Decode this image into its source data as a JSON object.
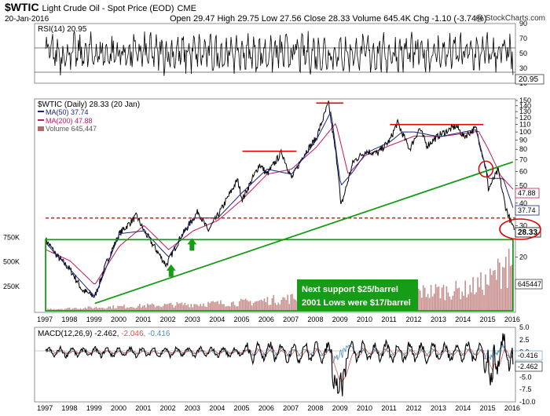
{
  "header": {
    "symbol": "$WTIC",
    "name": "Light Crude Oil - Spot Price (EOD)",
    "exchange": "CME",
    "date": "20-Jan-2016",
    "ohlc_line": "Open 29.47   High 29.75   Low 27.56   Close 28.33   Volume 645.4K   Chg -1.10 (-3.74%)",
    "watermark": "@ StockCharts.com"
  },
  "rsi_panel": {
    "label": "RSI(14) 20.95",
    "value_label": "20.95",
    "ticks": [
      "90",
      "70",
      "50",
      "30",
      "10"
    ]
  },
  "price_panel": {
    "legend": {
      "title": "$WTIC (Daily) 28.33 (20 Jan)",
      "ma50": "MA(50) 37.74",
      "ma200": "MA(200) 47.88",
      "volume": "Volume 645,447"
    },
    "price_ticks": [
      "150",
      "140",
      "130",
      "120",
      "110",
      "100",
      "90",
      "80",
      "70",
      "60",
      "50",
      "40",
      "30",
      "20"
    ],
    "value_labels": {
      "ma200": "47.88",
      "ma50": "37.74",
      "close": "28.33",
      "volume": "645447"
    },
    "volume_ticks": [
      "750K",
      "500K",
      "250K"
    ],
    "annotation_1": "Next support $25/barrel",
    "annotation_2": "2001 Lows were $17/barrel",
    "colors": {
      "price": "#000000",
      "ma50": "#1a237e",
      "ma200": "#c2185b",
      "volume": "#b56a6a",
      "trend": "#169c16",
      "resistance": "#e00000"
    }
  },
  "macd_panel": {
    "label_main": "MACD(12,26,9) -2.462,",
    "label_signal": "-2.046,",
    "label_hist": "-0.416",
    "ticks": [
      "5.0",
      "2.5",
      "0.0",
      "-2.5",
      "-5.0",
      "-7.5",
      "-10.0"
    ],
    "value_labels": {
      "hist": "-0.416",
      "macd": "-2.462"
    }
  },
  "x_axis": {
    "years": [
      "1997",
      "1998",
      "1999",
      "2000",
      "2001",
      "2002",
      "2003",
      "2004",
      "2005",
      "2006",
      "2007",
      "2008",
      "2009",
      "2010",
      "2011",
      "2012",
      "2013",
      "2014",
      "2015",
      "2016"
    ]
  },
  "chart_data": {
    "type": "line",
    "title": "$WTIC Light Crude Oil - Spot Price (EOD)",
    "x_range": [
      "1997",
      "2016"
    ],
    "price_axis": {
      "scale": "log",
      "ylim": [
        10,
        150
      ]
    },
    "series": [
      {
        "name": "$WTIC (Daily)",
        "x": [
          1997.0,
          1997.5,
          1998.0,
          1998.5,
          1999.0,
          1999.5,
          2000.0,
          2000.7,
          2001.0,
          2001.9,
          2002.5,
          2003.2,
          2003.6,
          2004.0,
          2004.8,
          2005.0,
          2005.7,
          2006.0,
          2006.6,
          2007.0,
          2007.5,
          2008.0,
          2008.5,
          2008.9,
          2009.0,
          2009.5,
          2010.0,
          2010.5,
          2011.0,
          2011.3,
          2011.8,
          2012.2,
          2012.5,
          2013.0,
          2013.7,
          2014.0,
          2014.5,
          2014.9,
          2015.0,
          2015.4,
          2015.7,
          2016.0,
          2016.05
        ],
        "y": [
          25,
          20,
          17,
          13,
          12,
          19,
          27,
          34,
          28,
          18,
          26,
          36,
          28,
          34,
          54,
          42,
          66,
          58,
          77,
          55,
          75,
          92,
          145,
          60,
          38,
          68,
          78,
          76,
          90,
          113,
          80,
          105,
          84,
          96,
          108,
          94,
          105,
          62,
          48,
          61,
          38,
          29,
          28.33
        ]
      },
      {
        "name": "MA(50)",
        "x": [
          1997.0,
          1998.0,
          1999.0,
          2000.0,
          2001.0,
          2002.0,
          2003.0,
          2004.0,
          2005.0,
          2006.0,
          2007.0,
          2008.0,
          2008.6,
          2009.0,
          2009.5,
          2010.0,
          2011.0,
          2011.5,
          2012.0,
          2013.0,
          2014.0,
          2014.5,
          2015.0,
          2015.6,
          2016.0
        ],
        "y": [
          24,
          17,
          12,
          27,
          28,
          20,
          33,
          33,
          46,
          62,
          58,
          90,
          130,
          50,
          60,
          76,
          88,
          100,
          100,
          94,
          100,
          103,
          55,
          55,
          37.74
        ]
      },
      {
        "name": "MA(200)",
        "x": [
          1997.0,
          1998.0,
          1999.0,
          2000.0,
          2001.0,
          2002.0,
          2003.0,
          2004.0,
          2005.0,
          2006.0,
          2007.0,
          2008.0,
          2008.8,
          2009.3,
          2010.0,
          2011.0,
          2012.0,
          2013.0,
          2014.0,
          2014.6,
          2015.0,
          2015.5,
          2016.0
        ],
        "y": [
          22,
          19,
          14,
          23,
          30,
          22,
          28,
          32,
          42,
          58,
          62,
          82,
          112,
          58,
          74,
          84,
          95,
          94,
          98,
          101,
          80,
          57,
          47.88
        ]
      }
    ],
    "volume": {
      "x": [
        1997,
        1999,
        2001,
        2003,
        2005,
        2007,
        2009,
        2010,
        2011,
        2012,
        2013,
        2014,
        2015,
        2016
      ],
      "values": [
        20000,
        40000,
        60000,
        80000,
        100000,
        150000,
        250000,
        200000,
        220000,
        220000,
        240000,
        250000,
        350000,
        645447
      ],
      "ylim": [
        0,
        800000
      ]
    },
    "rsi": {
      "name": "RSI(14)",
      "last": 20.95,
      "ylim": [
        10,
        90
      ],
      "levels": [
        30,
        70
      ]
    },
    "macd": {
      "name": "MACD(12,26,9)",
      "macd": -2.462,
      "signal": -2.046,
      "histogram": -0.416,
      "ylim": [
        -10,
        5
      ]
    },
    "annotations": [
      {
        "type": "resistance",
        "y": 78,
        "x": [
          2005.0,
          2007.2
        ]
      },
      {
        "type": "resistance",
        "y": 145,
        "x": [
          2008.0,
          2009.1
        ]
      },
      {
        "type": "resistance",
        "y": 110,
        "x": [
          2011.0,
          2014.8
        ]
      },
      {
        "type": "support",
        "y": 33,
        "x": [
          1997.0,
          2016.1
        ]
      },
      {
        "type": "trendline",
        "x": [
          1999.0,
          2016.0
        ],
        "y": [
          11,
          68
        ]
      },
      {
        "type": "zone",
        "y": [
          10,
          25
        ],
        "x": [
          1997.0,
          2016.0
        ]
      }
    ]
  }
}
